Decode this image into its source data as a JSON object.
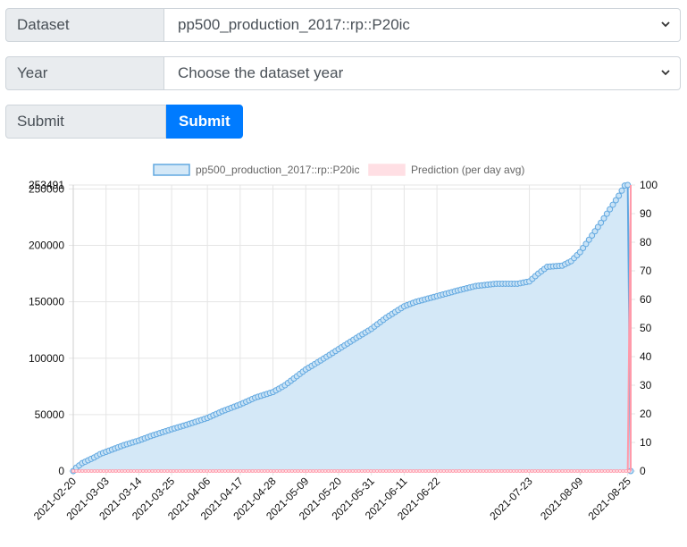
{
  "form": {
    "dataset_label": "Dataset",
    "dataset_value": "pp500_production_2017::rp::P20ic",
    "year_label": "Year",
    "year_value": "Choose the dataset year",
    "submit_label": "Submit",
    "submit_button": "Submit"
  },
  "colors": {
    "series_fill": "#d4e8f7",
    "series_line": "#62a8e0",
    "prediction_fill": "#ffdfe4",
    "prediction_line": "#ff9aaa"
  },
  "chart_data": {
    "type": "line",
    "legend": [
      {
        "name": "pp500_production_2017::rp::P20ic"
      },
      {
        "name": "Prediction (per day avg)"
      }
    ],
    "legend_position": "top",
    "grid": true,
    "x_dates": [
      "2021-02-20",
      "2021-03-03",
      "2021-03-14",
      "2021-03-25",
      "2021-04-06",
      "2021-04-17",
      "2021-04-28",
      "2021-05-09",
      "2021-05-20",
      "2021-05-31",
      "2021-06-11",
      "2021-06-22",
      "2021-07-23",
      "2021-08-09",
      "2021-08-25"
    ],
    "ylim_left": [
      0,
      253491
    ],
    "left_ticks": [
      "0",
      "50000",
      "100000",
      "150000",
      "200000",
      "250000",
      "253491"
    ],
    "right_ticks": [
      "0",
      "10",
      "20",
      "30",
      "40",
      "50",
      "60",
      "70",
      "80",
      "90",
      "100"
    ],
    "ylim_right": [
      0,
      100
    ],
    "series": [
      {
        "name": "pp500_production_2017::rp::P20ic",
        "points": [
          [
            "2021-02-20",
            0
          ],
          [
            "2021-02-21",
            3000
          ],
          [
            "2021-02-22",
            5000
          ],
          [
            "2021-02-23",
            7000
          ],
          [
            "2021-02-25",
            9500
          ],
          [
            "2021-02-27",
            12000
          ],
          [
            "2021-03-01",
            15000
          ],
          [
            "2021-03-03",
            17000
          ],
          [
            "2021-03-06",
            20000
          ],
          [
            "2021-03-09",
            23000
          ],
          [
            "2021-03-14",
            27000
          ],
          [
            "2021-03-18",
            31000
          ],
          [
            "2021-03-25",
            37000
          ],
          [
            "2021-03-30",
            41000
          ],
          [
            "2021-04-06",
            47000
          ],
          [
            "2021-04-11",
            53000
          ],
          [
            "2021-04-17",
            59000
          ],
          [
            "2021-04-22",
            65000
          ],
          [
            "2021-04-28",
            70000
          ],
          [
            "2021-05-02",
            76000
          ],
          [
            "2021-05-05",
            82000
          ],
          [
            "2021-05-09",
            90000
          ],
          [
            "2021-05-14",
            98000
          ],
          [
            "2021-05-20",
            108000
          ],
          [
            "2021-05-26",
            118000
          ],
          [
            "2021-05-31",
            126000
          ],
          [
            "2021-06-05",
            136000
          ],
          [
            "2021-06-11",
            146000
          ],
          [
            "2021-06-15",
            150000
          ],
          [
            "2021-06-22",
            155000
          ],
          [
            "2021-06-29",
            160000
          ],
          [
            "2021-07-05",
            164000
          ],
          [
            "2021-07-12",
            166000
          ],
          [
            "2021-07-19",
            166000
          ],
          [
            "2021-07-23",
            168000
          ],
          [
            "2021-07-26",
            175000
          ],
          [
            "2021-07-29",
            181000
          ],
          [
            "2021-08-03",
            182000
          ],
          [
            "2021-08-06",
            186000
          ],
          [
            "2021-08-09",
            194000
          ],
          [
            "2021-08-12",
            205000
          ],
          [
            "2021-08-16",
            220000
          ],
          [
            "2021-08-19",
            232000
          ],
          [
            "2021-08-22",
            244000
          ],
          [
            "2021-08-24",
            253000
          ],
          [
            "2021-08-25",
            253491
          ],
          [
            "2021-08-26",
            0
          ]
        ]
      },
      {
        "name": "Prediction (per day avg)",
        "points": [
          [
            "2021-02-20",
            0
          ],
          [
            "2021-08-25",
            0
          ],
          [
            "2021-08-26",
            100
          ],
          [
            "2021-08-26",
            0
          ]
        ]
      }
    ]
  }
}
